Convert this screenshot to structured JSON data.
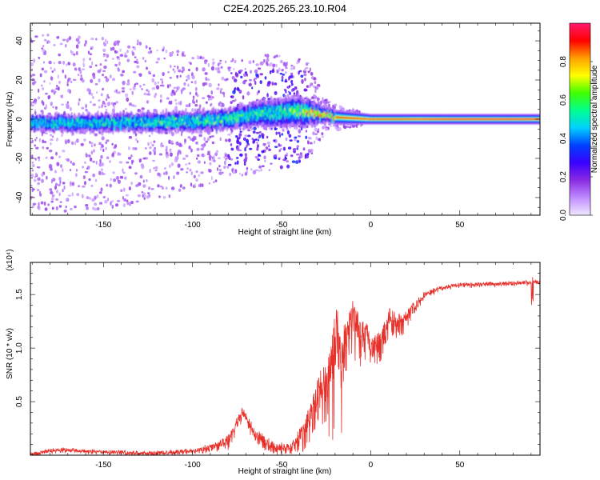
{
  "title": "C2E4.2025.265.23.10.R04",
  "chart_data": [
    {
      "type": "heatmap",
      "xlabel": "Height of straight line (km)",
      "ylabel": "Frequency (Hz)",
      "xlim": [
        -191,
        95
      ],
      "ylim": [
        -49,
        49
      ],
      "xticks": [
        -150,
        -100,
        -50,
        0,
        50
      ],
      "yticks": [
        -40,
        -20,
        0,
        20,
        40
      ],
      "colorbar": {
        "label": "Normalized spectral amplitude",
        "range": [
          0,
          1
        ],
        "ticks": [
          "0.0",
          "0.2",
          "0.4",
          "0.6",
          "0.8"
        ],
        "tick_values": [
          0.0,
          0.2,
          0.4,
          0.6,
          0.8
        ],
        "colors": [
          "#f0e8ff",
          "#c08cff",
          "#8a2be2",
          "#3a00ff",
          "#0040ff",
          "#00d0ff",
          "#00ff90",
          "#40ff00",
          "#ffff00",
          "#ffa000",
          "#ff0000",
          "#ff1a6e"
        ]
      },
      "description_points": {
        "band_center_hz": [
          [
            -191,
            -2
          ],
          [
            -150,
            -2
          ],
          [
            -100,
            -1
          ],
          [
            -80,
            0
          ],
          [
            -60,
            3
          ],
          [
            -40,
            4
          ],
          [
            -30,
            3
          ],
          [
            -20,
            1
          ],
          [
            0,
            0
          ],
          [
            50,
            0
          ],
          [
            95,
            0
          ]
        ],
        "band_halfwidth_hz": [
          [
            -191,
            3
          ],
          [
            -80,
            4
          ],
          [
            -40,
            6
          ],
          [
            -25,
            3
          ],
          [
            0,
            2
          ],
          [
            95,
            2
          ]
        ],
        "peak_amplitude": [
          [
            -191,
            0.5
          ],
          [
            -150,
            0.55
          ],
          [
            -100,
            0.6
          ],
          [
            -80,
            0.6
          ],
          [
            -50,
            0.55
          ],
          [
            -30,
            0.85
          ],
          [
            -10,
            0.9
          ],
          [
            20,
            0.9
          ],
          [
            50,
            0.95
          ],
          [
            95,
            0.95
          ]
        ],
        "scatter_spread_hz": [
          [
            -191,
            45
          ],
          [
            -160,
            45
          ],
          [
            -120,
            40
          ],
          [
            -80,
            30
          ],
          [
            -50,
            30
          ],
          [
            -35,
            25
          ],
          [
            -25,
            8
          ],
          [
            0,
            2
          ],
          [
            95,
            1
          ]
        ]
      }
    },
    {
      "type": "line",
      "xlabel": "Height of straight line (km)",
      "ylabel": "SNR (10 * v/v)",
      "y_multiplier": "(x10⁴)",
      "xlim": [
        -191,
        95
      ],
      "ylim": [
        0,
        1.8
      ],
      "xticks": [
        -150,
        -100,
        -50,
        0,
        50
      ],
      "yticks": [
        0.5,
        1.0,
        1.5
      ],
      "ytick_labels": [
        "0.5",
        "1.0",
        "1.5"
      ],
      "series": [
        {
          "name": "SNR",
          "color": "#e8302a",
          "envelope": [
            [
              -191,
              0.02
            ],
            [
              -175,
              0.06
            ],
            [
              -150,
              0.04
            ],
            [
              -120,
              0.03
            ],
            [
              -100,
              0.05
            ],
            [
              -90,
              0.1
            ],
            [
              -80,
              0.18
            ],
            [
              -72,
              0.45
            ],
            [
              -65,
              0.25
            ],
            [
              -55,
              0.12
            ],
            [
              -45,
              0.1
            ],
            [
              -38,
              0.3
            ],
            [
              -33,
              0.55
            ],
            [
              -28,
              0.8
            ],
            [
              -24,
              0.9
            ],
            [
              -21,
              1.2
            ],
            [
              -19,
              1.5
            ],
            [
              -17,
              1.1
            ],
            [
              -14,
              1.35
            ],
            [
              -10,
              1.45
            ],
            [
              -6,
              1.3
            ],
            [
              -2,
              1.25
            ],
            [
              0,
              1.1
            ],
            [
              4,
              1.15
            ],
            [
              8,
              1.25
            ],
            [
              11,
              1.4
            ],
            [
              15,
              1.3
            ],
            [
              20,
              1.35
            ],
            [
              25,
              1.45
            ],
            [
              30,
              1.52
            ],
            [
              38,
              1.57
            ],
            [
              50,
              1.6
            ],
            [
              70,
              1.61
            ],
            [
              85,
              1.62
            ],
            [
              92,
              1.63
            ],
            [
              95,
              1.62
            ]
          ],
          "spread": [
            [
              -191,
              0.03
            ],
            [
              -100,
              0.03
            ],
            [
              -80,
              0.12
            ],
            [
              -65,
              0.15
            ],
            [
              -45,
              0.1
            ],
            [
              -35,
              0.35
            ],
            [
              -25,
              0.6
            ],
            [
              -20,
              0.75
            ],
            [
              -15,
              0.6
            ],
            [
              -10,
              0.55
            ],
            [
              -5,
              0.45
            ],
            [
              0,
              0.35
            ],
            [
              10,
              0.3
            ],
            [
              20,
              0.18
            ],
            [
              30,
              0.06
            ],
            [
              40,
              0.03
            ],
            [
              95,
              0.03
            ]
          ]
        }
      ]
    }
  ]
}
